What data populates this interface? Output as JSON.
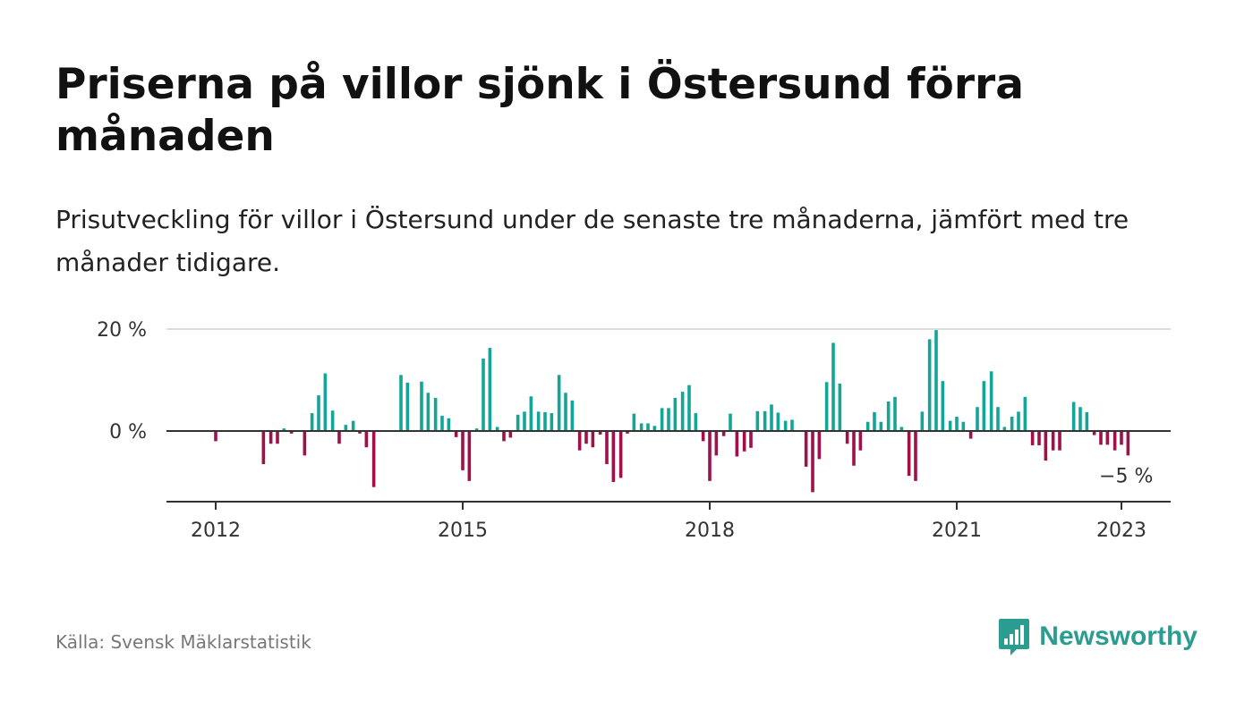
{
  "header": {
    "title": "Priserna på villor sjönk i Östersund förra månaden",
    "subtitle": "Prisutveckling för villor i Östersund under de senaste tre månaderna, jämfört med tre månader tidigare."
  },
  "footer": {
    "source": "Källa: Svensk Mäklarstatistik",
    "brand": "Newsworthy",
    "brand_icon": "bar-chart-speech-bubble-icon"
  },
  "colors": {
    "positive": "#14a597",
    "negative": "#a0114b",
    "brand": "#2a9d90",
    "grid": "#dddddd",
    "zero_line": "#333333"
  },
  "chart_data": {
    "type": "bar",
    "title": "Priserna på villor sjönk i Östersund förra månaden",
    "subtitle": "Prisutveckling för villor i Östersund under de senaste tre månaderna, jämfört med tre månader tidigare.",
    "xlabel": "",
    "ylabel": "",
    "ylim": [
      -14,
      20
    ],
    "y_ticks": [
      {
        "value": 20,
        "label": "20 %"
      },
      {
        "value": 0,
        "label": "0 %"
      }
    ],
    "x_ticks": [
      {
        "value": 2012,
        "label": "2012"
      },
      {
        "value": 2015,
        "label": "2015"
      },
      {
        "value": 2018,
        "label": "2018"
      },
      {
        "value": 2021,
        "label": "2021"
      },
      {
        "value": 2023,
        "label": "2023"
      }
    ],
    "grid": true,
    "annotation": {
      "label": "−5 %",
      "target": "last"
    },
    "unit": "%",
    "series": [
      {
        "values": [
          {
            "x": 2012.0,
            "y": -2.0
          },
          {
            "x": 2012.58,
            "y": -6.5
          },
          {
            "x": 2012.67,
            "y": -2.5
          },
          {
            "x": 2012.75,
            "y": -2.5
          },
          {
            "x": 2012.83,
            "y": 0.5
          },
          {
            "x": 2012.92,
            "y": -0.5
          },
          {
            "x": 2013.08,
            "y": -4.8
          },
          {
            "x": 2013.17,
            "y": 3.5
          },
          {
            "x": 2013.25,
            "y": 7.0
          },
          {
            "x": 2013.33,
            "y": 11.3
          },
          {
            "x": 2013.42,
            "y": 4.0
          },
          {
            "x": 2013.5,
            "y": -2.5
          },
          {
            "x": 2013.58,
            "y": 1.2
          },
          {
            "x": 2013.67,
            "y": 2.0
          },
          {
            "x": 2013.75,
            "y": -0.5
          },
          {
            "x": 2013.83,
            "y": -3.2
          },
          {
            "x": 2013.92,
            "y": -11.0
          },
          {
            "x": 2014.25,
            "y": 11.0
          },
          {
            "x": 2014.33,
            "y": 9.5
          },
          {
            "x": 2014.5,
            "y": 9.7
          },
          {
            "x": 2014.58,
            "y": 7.5
          },
          {
            "x": 2014.67,
            "y": 6.5
          },
          {
            "x": 2014.75,
            "y": 3.0
          },
          {
            "x": 2014.83,
            "y": 2.5
          },
          {
            "x": 2014.92,
            "y": -1.2
          },
          {
            "x": 2015.0,
            "y": -7.7
          },
          {
            "x": 2015.08,
            "y": -9.8
          },
          {
            "x": 2015.17,
            "y": 0.5
          },
          {
            "x": 2015.25,
            "y": 14.2
          },
          {
            "x": 2015.33,
            "y": 16.3
          },
          {
            "x": 2015.42,
            "y": 0.8
          },
          {
            "x": 2015.5,
            "y": -2.0
          },
          {
            "x": 2015.58,
            "y": -1.3
          },
          {
            "x": 2015.67,
            "y": 3.2
          },
          {
            "x": 2015.75,
            "y": 3.8
          },
          {
            "x": 2015.83,
            "y": 6.8
          },
          {
            "x": 2015.92,
            "y": 3.8
          },
          {
            "x": 2016.0,
            "y": 3.7
          },
          {
            "x": 2016.08,
            "y": 3.5
          },
          {
            "x": 2016.17,
            "y": 11.0
          },
          {
            "x": 2016.25,
            "y": 7.5
          },
          {
            "x": 2016.33,
            "y": 6.0
          },
          {
            "x": 2016.42,
            "y": -3.8
          },
          {
            "x": 2016.5,
            "y": -2.5
          },
          {
            "x": 2016.58,
            "y": -3.2
          },
          {
            "x": 2016.67,
            "y": -0.7
          },
          {
            "x": 2016.75,
            "y": -6.5
          },
          {
            "x": 2016.83,
            "y": -10.0
          },
          {
            "x": 2016.92,
            "y": -9.2
          },
          {
            "x": 2017.0,
            "y": -0.5
          },
          {
            "x": 2017.08,
            "y": 3.4
          },
          {
            "x": 2017.17,
            "y": 1.5
          },
          {
            "x": 2017.25,
            "y": 1.5
          },
          {
            "x": 2017.33,
            "y": 1.0
          },
          {
            "x": 2017.42,
            "y": 4.5
          },
          {
            "x": 2017.5,
            "y": 4.5
          },
          {
            "x": 2017.58,
            "y": 6.5
          },
          {
            "x": 2017.67,
            "y": 7.7
          },
          {
            "x": 2017.75,
            "y": 9.0
          },
          {
            "x": 2017.83,
            "y": 3.5
          },
          {
            "x": 2017.92,
            "y": -2.0
          },
          {
            "x": 2018.0,
            "y": -9.8
          },
          {
            "x": 2018.08,
            "y": -4.8
          },
          {
            "x": 2018.17,
            "y": -1.0
          },
          {
            "x": 2018.25,
            "y": 3.4
          },
          {
            "x": 2018.33,
            "y": -5.0
          },
          {
            "x": 2018.42,
            "y": -4.0
          },
          {
            "x": 2018.5,
            "y": -3.3
          },
          {
            "x": 2018.58,
            "y": 3.9
          },
          {
            "x": 2018.67,
            "y": 3.9
          },
          {
            "x": 2018.75,
            "y": 5.2
          },
          {
            "x": 2018.83,
            "y": 3.6
          },
          {
            "x": 2018.92,
            "y": 2.0
          },
          {
            "x": 2019.0,
            "y": 2.2
          },
          {
            "x": 2019.17,
            "y": -7.0
          },
          {
            "x": 2019.25,
            "y": -12.0
          },
          {
            "x": 2019.33,
            "y": -5.5
          },
          {
            "x": 2019.42,
            "y": 9.6
          },
          {
            "x": 2019.5,
            "y": 17.3
          },
          {
            "x": 2019.58,
            "y": 9.3
          },
          {
            "x": 2019.67,
            "y": -2.5
          },
          {
            "x": 2019.75,
            "y": -6.8
          },
          {
            "x": 2019.83,
            "y": -3.8
          },
          {
            "x": 2019.92,
            "y": 1.8
          },
          {
            "x": 2020.0,
            "y": 3.7
          },
          {
            "x": 2020.08,
            "y": 1.8
          },
          {
            "x": 2020.17,
            "y": 5.8
          },
          {
            "x": 2020.25,
            "y": 6.7
          },
          {
            "x": 2020.33,
            "y": 0.8
          },
          {
            "x": 2020.42,
            "y": -8.8
          },
          {
            "x": 2020.5,
            "y": -9.8
          },
          {
            "x": 2020.58,
            "y": 3.8
          },
          {
            "x": 2020.67,
            "y": 18.0
          },
          {
            "x": 2020.75,
            "y": 19.8
          },
          {
            "x": 2020.83,
            "y": 9.8
          },
          {
            "x": 2020.92,
            "y": 2.0
          },
          {
            "x": 2021.0,
            "y": 2.8
          },
          {
            "x": 2021.08,
            "y": 1.8
          },
          {
            "x": 2021.17,
            "y": -1.5
          },
          {
            "x": 2021.25,
            "y": 4.7
          },
          {
            "x": 2021.33,
            "y": 9.8
          },
          {
            "x": 2021.42,
            "y": 11.7
          },
          {
            "x": 2021.5,
            "y": 4.7
          },
          {
            "x": 2021.58,
            "y": 0.8
          },
          {
            "x": 2021.67,
            "y": 2.8
          },
          {
            "x": 2021.75,
            "y": 3.8
          },
          {
            "x": 2021.83,
            "y": 6.7
          },
          {
            "x": 2021.92,
            "y": -2.8
          },
          {
            "x": 2022.0,
            "y": -2.8
          },
          {
            "x": 2022.08,
            "y": -5.8
          },
          {
            "x": 2022.17,
            "y": -3.8
          },
          {
            "x": 2022.25,
            "y": -3.8
          },
          {
            "x": 2022.42,
            "y": 5.7
          },
          {
            "x": 2022.5,
            "y": 4.7
          },
          {
            "x": 2022.58,
            "y": 3.7
          },
          {
            "x": 2022.67,
            "y": -0.8
          },
          {
            "x": 2022.75,
            "y": -2.7
          },
          {
            "x": 2022.83,
            "y": -2.7
          },
          {
            "x": 2022.92,
            "y": -3.8
          },
          {
            "x": 2023.0,
            "y": -2.7
          },
          {
            "x": 2023.08,
            "y": -4.8
          }
        ]
      }
    ]
  }
}
